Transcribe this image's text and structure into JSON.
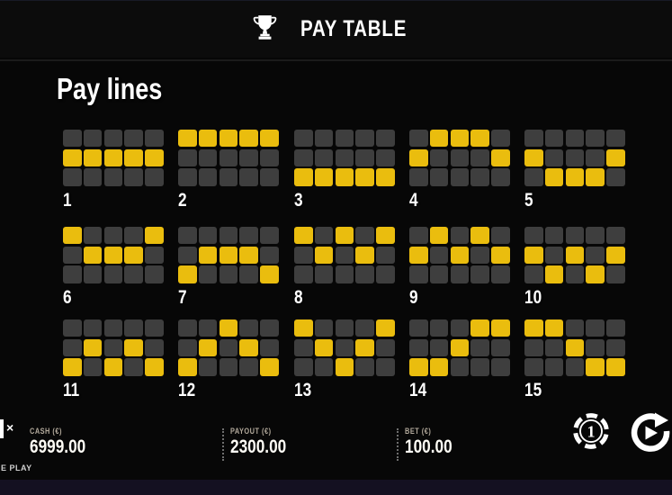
{
  "header": {
    "title": "PAY TABLE"
  },
  "paylines": {
    "title": "Pay lines",
    "grid": {
      "columns": 5,
      "rows": 3,
      "row_meaning": "0=top,1=middle,2=bottom"
    },
    "colors": {
      "cell": "#3e3e3e",
      "active": "#eabd0e"
    },
    "lines": [
      {
        "number": "1",
        "pattern": [
          1,
          1,
          1,
          1,
          1
        ]
      },
      {
        "number": "2",
        "pattern": [
          0,
          0,
          0,
          0,
          0
        ]
      },
      {
        "number": "3",
        "pattern": [
          2,
          2,
          2,
          2,
          2
        ]
      },
      {
        "number": "4",
        "pattern": [
          1,
          0,
          0,
          0,
          1
        ]
      },
      {
        "number": "5",
        "pattern": [
          1,
          2,
          2,
          2,
          1
        ]
      },
      {
        "number": "6",
        "pattern": [
          0,
          1,
          1,
          1,
          0
        ]
      },
      {
        "number": "7",
        "pattern": [
          2,
          1,
          1,
          1,
          2
        ]
      },
      {
        "number": "8",
        "pattern": [
          0,
          1,
          0,
          1,
          0
        ]
      },
      {
        "number": "9",
        "pattern": [
          1,
          0,
          1,
          0,
          1
        ]
      },
      {
        "number": "10",
        "pattern": [
          1,
          2,
          1,
          2,
          1
        ]
      },
      {
        "number": "11",
        "pattern": [
          2,
          1,
          2,
          1,
          2
        ]
      },
      {
        "number": "12",
        "pattern": [
          2,
          1,
          0,
          1,
          2
        ]
      },
      {
        "number": "13",
        "pattern": [
          0,
          1,
          2,
          1,
          0
        ]
      },
      {
        "number": "14",
        "pattern": [
          2,
          2,
          1,
          0,
          0
        ]
      },
      {
        "number": "15",
        "pattern": [
          0,
          0,
          1,
          2,
          2
        ]
      }
    ]
  },
  "statusbar": {
    "multiplier_fragment": "×",
    "cash": {
      "label": "CASH (€)",
      "value": "6999.00"
    },
    "payout": {
      "label": "PAYOUT (€)",
      "value": "2300.00"
    },
    "bet": {
      "label": "BET (€)",
      "value": "100.00"
    },
    "chip_button_value": "1"
  },
  "footer": {
    "play_mode_fragment": "E PLAY"
  }
}
